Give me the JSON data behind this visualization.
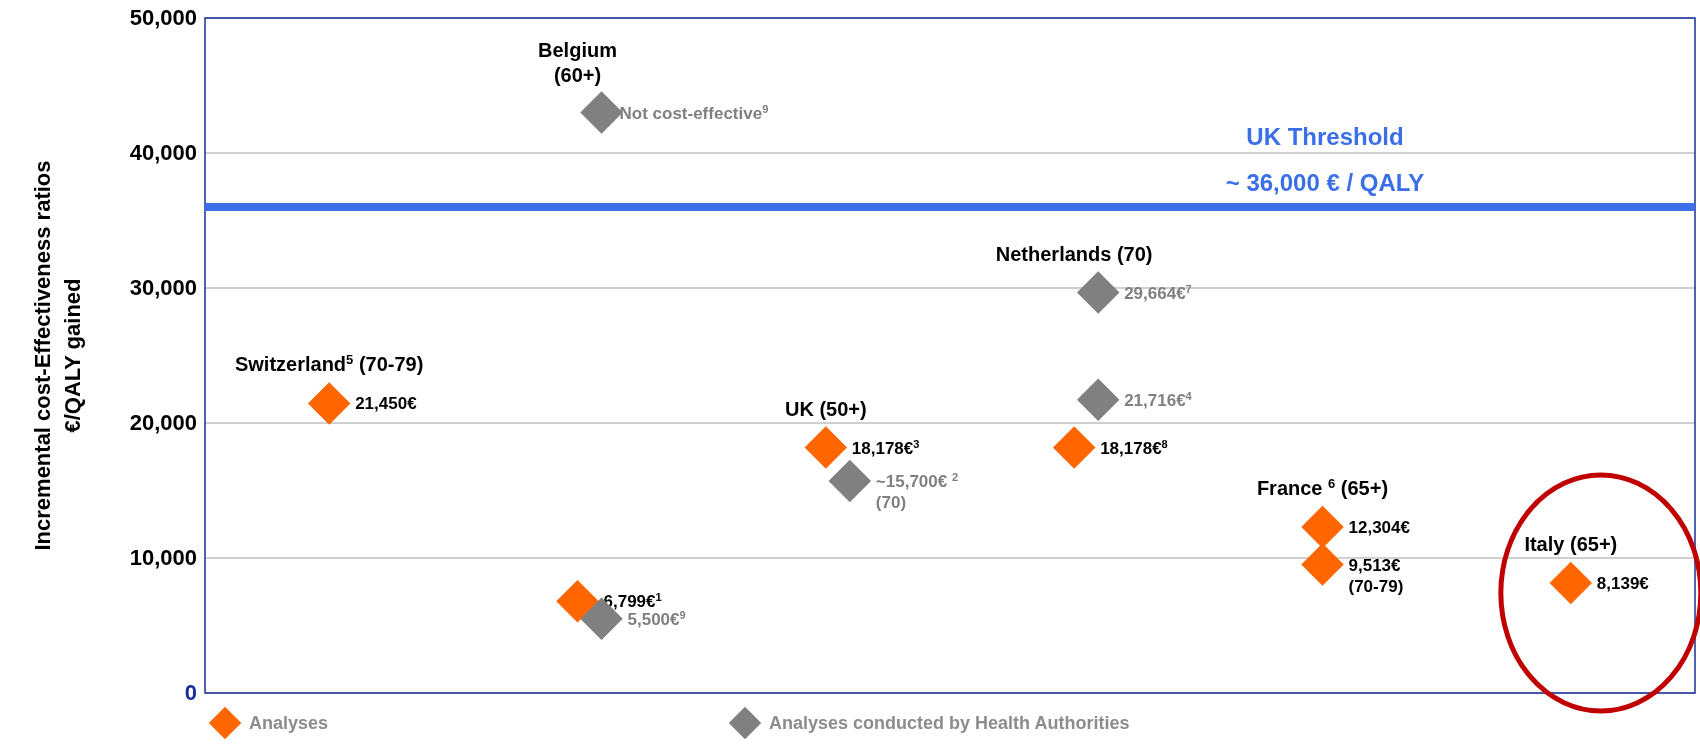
{
  "chart_data": {
    "type": "scatter",
    "ylabel": "Incremental cost-Effectiveness ratios\n€/QALY gained",
    "categories": [
      "Switzerland$^{5}$ (70-79)",
      "Belgium\n(60+)",
      "UK  (50+)",
      "Netherlands (70)",
      "France $^{6}$ (65+)",
      "Italy (65+)"
    ],
    "series": [
      {
        "name": "Analyses",
        "color": "#ff6600",
        "values": [
          21450,
          6799,
          18178,
          18178,
          12304,
          8139
        ],
        "value_labels": [
          "21,450€",
          "6,799€$^{1}$",
          "18,178€$^{3}$",
          "18,178€$^{8}$",
          "12,304€",
          "8,139€"
        ]
      },
      {
        "color": "#ff6600",
        "values": [
          null,
          null,
          null,
          null,
          9513,
          null
        ],
        "value_labels": [
          null,
          null,
          null,
          null,
          "9,513€\n(70-79)",
          null
        ]
      },
      {
        "name": "Analyses conducted by Health Authorities",
        "color": "#808080",
        "values": [
          null,
          5500,
          15700,
          29664,
          null,
          null
        ],
        "value_labels": [
          null,
          "5,500€$^{9}$",
          "~15,700€ $^{2}$\n(70)",
          "29,664€$^{7}$",
          null,
          null
        ]
      },
      {
        "color": "#808080",
        "values": [
          null,
          43000,
          null,
          21716,
          null,
          null
        ],
        "value_labels": [
          null,
          null,
          null,
          "21,716€$^{4}$",
          null,
          null
        ]
      }
    ],
    "annotations": [
      {
        "text": "Not cost-effective$^{9}$",
        "x": "Belgium\n(60+)",
        "y": 43000
      }
    ],
    "ylim": [
      0,
      50000
    ],
    "yticks": [
      0,
      {
        "value": 10000,
        "label": "10,000"
      },
      {
        "value": 20000,
        "label": "20,000"
      },
      {
        "value": 30000,
        "label": "30,000"
      },
      {
        "value": 40000,
        "label": "40,000"
      },
      {
        "value": 50000,
        "label": "50,000"
      }
    ],
    "ref_lines": [
      {
        "axis": "y",
        "value": 36000,
        "label": "UK Threshold\n~ 36,000 € / QALY",
        "color": "#3a6fe8"
      }
    ],
    "grid": "y",
    "legend": "bottom",
    "marker": "diamond"
  }
}
